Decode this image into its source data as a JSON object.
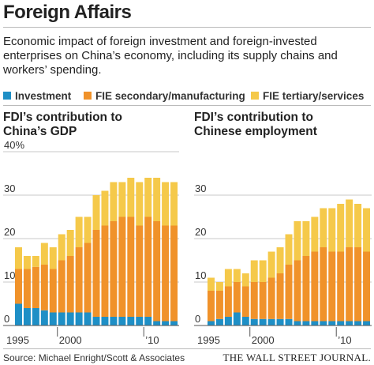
{
  "header": {
    "title": "Foreign Affairs",
    "subtitle": "Economic impact of foreign investment and foreign-invested enterprises on China’s economy, including its supply chains and workers’ spending."
  },
  "chart_data": [
    {
      "type": "bar",
      "stacked": true,
      "title": "FDI’s contribution to China’s GDP",
      "categories": [
        "1995",
        null,
        null,
        null,
        null,
        "2000",
        null,
        null,
        null,
        null,
        null,
        null,
        null,
        null,
        null,
        "’10",
        null,
        null,
        null
      ],
      "series": [
        {
          "name": "Investment",
          "color": "#1e8fc6",
          "values": [
            5,
            4,
            4,
            3.5,
            3,
            3,
            3,
            3,
            3,
            2,
            2,
            2,
            2,
            2,
            2,
            2,
            1,
            1,
            1
          ]
        },
        {
          "name": "FIE secondary/manufacturing",
          "color": "#f0922a",
          "values": [
            8,
            9,
            9.5,
            10.5,
            10,
            12,
            13,
            15,
            16,
            20,
            21,
            22,
            23,
            23,
            21,
            23,
            23,
            22,
            22
          ]
        },
        {
          "name": "FIE tertiary/services",
          "color": "#f5c94a",
          "values": [
            5,
            3,
            2.5,
            5,
            5,
            6,
            6,
            7,
            6,
            8,
            8,
            9,
            8,
            9,
            10,
            9,
            10,
            10,
            10
          ]
        }
      ],
      "ylim": [
        0,
        40
      ],
      "yticks": [
        0,
        10,
        20,
        30,
        {
          "value": 40,
          "label": "40%"
        }
      ],
      "grid": true
    },
    {
      "type": "bar",
      "stacked": true,
      "title": "FDI’s contribution to Chinese employment",
      "categories": [
        "1995",
        null,
        null,
        null,
        null,
        "2000",
        null,
        null,
        null,
        null,
        null,
        null,
        null,
        null,
        null,
        "’10",
        null,
        null,
        null
      ],
      "series": [
        {
          "color": "#1e8fc6",
          "values": [
            1,
            1.5,
            2,
            3,
            2,
            1.5,
            1.5,
            1.5,
            1.5,
            1.5,
            1,
            1,
            1,
            1,
            1,
            1,
            1,
            1,
            1
          ]
        },
        {
          "color": "#f0922a",
          "values": [
            7,
            6.5,
            7,
            7,
            7,
            8.5,
            8.5,
            9.5,
            10.5,
            12.5,
            14,
            15,
            16,
            17,
            16,
            16,
            17,
            17,
            16
          ]
        },
        {
          "color": "#f5c94a",
          "values": [
            3,
            2,
            4,
            3,
            3,
            5,
            5,
            6,
            6,
            7,
            9,
            8,
            8,
            9,
            10,
            11,
            11,
            10,
            10
          ]
        }
      ],
      "ylim": [
        0,
        40
      ],
      "yticks": [
        0,
        10,
        20,
        30
      ],
      "grid": true
    }
  ],
  "footer": {
    "source": "Source: Michael Enright/Scott & Associates",
    "credit": "THE WALL STREET JOURNAL."
  }
}
